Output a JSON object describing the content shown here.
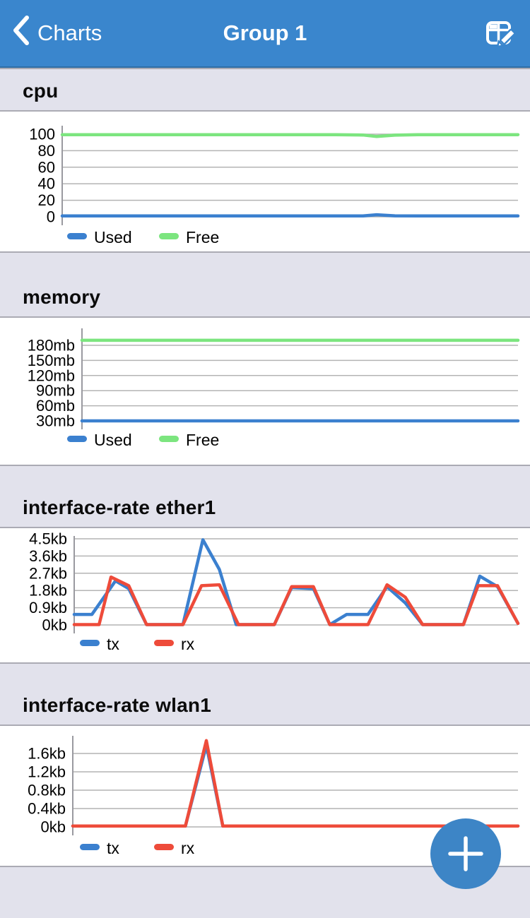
{
  "navbar": {
    "back_label": "Charts",
    "back_icon": "chevron-left-icon",
    "title": "Group 1",
    "edit_icon": "edit-grid-icon",
    "accent": "#3a86cd"
  },
  "fab": {
    "icon": "plus-icon",
    "color": "#3d85c6"
  },
  "colors": {
    "navbar_blue": "#3a86cd",
    "band_background": "#e2e2ec",
    "band_border": "#ababb4",
    "gridline": "#b4b4b4",
    "axis": "#9a9aa0",
    "series_blue": "#3b80cf",
    "series_green": "#7ce57f",
    "series_red": "#ee4b3a",
    "fab_blue": "#3d85c6"
  },
  "chart_data": [
    {
      "type": "line",
      "title": "cpu",
      "ylim": [
        0,
        100
      ],
      "grid": true,
      "legend_position": "bottom-left",
      "ticks": {
        "values": [
          0,
          20,
          40,
          60,
          80,
          100
        ],
        "labels": [
          "0",
          "20",
          "40",
          "60",
          "80",
          "100"
        ]
      },
      "series": [
        {
          "name": "Used",
          "color": "#3b80cf",
          "points": [
            [
              0,
              1
            ],
            [
              0.6,
              1
            ],
            [
              0.66,
              1
            ],
            [
              0.69,
              2.5
            ],
            [
              0.73,
              1.2
            ],
            [
              0.78,
              1
            ],
            [
              1,
              1
            ]
          ]
        },
        {
          "name": "Free",
          "color": "#7ce57f",
          "points": [
            [
              0,
              99.3
            ],
            [
              0.6,
              99.3
            ],
            [
              0.66,
              99
            ],
            [
              0.69,
              97.2
            ],
            [
              0.73,
              98.8
            ],
            [
              0.78,
              99.4
            ],
            [
              1,
              99.4
            ]
          ]
        }
      ]
    },
    {
      "type": "line",
      "title": "memory",
      "ylim": [
        30,
        190
      ],
      "grid": true,
      "legend_position": "bottom-left",
      "ticks": {
        "values": [
          30,
          60,
          90,
          120,
          150,
          180
        ],
        "labels": [
          "30mb",
          "60mb",
          "90mb",
          "120mb",
          "150mb",
          "180mb"
        ]
      },
      "series": [
        {
          "name": "Used",
          "color": "#3b80cf",
          "points": [
            [
              0,
              30
            ],
            [
              1,
              30
            ]
          ]
        },
        {
          "name": "Free",
          "color": "#7ce57f",
          "points": [
            [
              0,
              190
            ],
            [
              1,
              190
            ]
          ]
        }
      ]
    },
    {
      "type": "line",
      "title": "interface-rate ether1",
      "ylim": [
        0,
        4.5
      ],
      "grid": true,
      "legend_position": "bottom-left",
      "ticks": {
        "values": [
          0,
          0.9,
          1.8,
          2.7,
          3.6,
          4.5
        ],
        "labels": [
          "0kb",
          "0.9kb",
          "1.8kb",
          "2.7kb",
          "3.6kb",
          "4.5kb"
        ]
      },
      "series": [
        {
          "name": "tx",
          "color": "#3b80cf",
          "points": [
            [
              0,
              0.55
            ],
            [
              0.04,
              0.55
            ],
            [
              0.093,
              2.3
            ],
            [
              0.123,
              1.9
            ],
            [
              0.163,
              0.02
            ],
            [
              0.245,
              0.02
            ],
            [
              0.29,
              4.45
            ],
            [
              0.327,
              2.9
            ],
            [
              0.365,
              0.02
            ],
            [
              0.451,
              0.02
            ],
            [
              0.49,
              1.95
            ],
            [
              0.539,
              1.9
            ],
            [
              0.576,
              0.02
            ],
            [
              0.614,
              0.55
            ],
            [
              0.662,
              0.55
            ],
            [
              0.705,
              2.0
            ],
            [
              0.746,
              1.15
            ],
            [
              0.785,
              0.02
            ],
            [
              0.877,
              0.02
            ],
            [
              0.914,
              2.55
            ],
            [
              0.954,
              2.0
            ],
            [
              1,
              0.08
            ]
          ]
        },
        {
          "name": "rx",
          "color": "#ee4b3a",
          "points": [
            [
              0,
              0.02
            ],
            [
              0.056,
              0.02
            ],
            [
              0.083,
              2.5
            ],
            [
              0.123,
              2.05
            ],
            [
              0.163,
              0.02
            ],
            [
              0.245,
              0.02
            ],
            [
              0.287,
              2.05
            ],
            [
              0.327,
              2.1
            ],
            [
              0.37,
              0.02
            ],
            [
              0.451,
              0.02
            ],
            [
              0.49,
              2.0
            ],
            [
              0.539,
              2.0
            ],
            [
              0.576,
              0.02
            ],
            [
              0.662,
              0.02
            ],
            [
              0.705,
              2.1
            ],
            [
              0.746,
              1.45
            ],
            [
              0.785,
              0.02
            ],
            [
              0.877,
              0.02
            ],
            [
              0.91,
              2.05
            ],
            [
              0.954,
              2.05
            ],
            [
              1,
              0.08
            ]
          ]
        }
      ]
    },
    {
      "type": "line",
      "title": "interface-rate wlan1",
      "ylim": [
        0,
        1.9
      ],
      "grid": true,
      "legend_position": "bottom-left",
      "ticks": {
        "values": [
          0,
          0.4,
          0.8,
          1.2,
          1.6
        ],
        "labels": [
          "0kb",
          "0.4kb",
          "0.8kb",
          "1.2kb",
          "1.6kb"
        ]
      },
      "series": [
        {
          "name": "tx",
          "color": "#3b80cf",
          "points": [
            [
              0,
              0.02
            ],
            [
              0.253,
              0.02
            ],
            [
              0.3,
              1.78
            ],
            [
              0.337,
              0.02
            ],
            [
              1,
              0.02
            ]
          ]
        },
        {
          "name": "rx",
          "color": "#ee4b3a",
          "points": [
            [
              0,
              0.02
            ],
            [
              0.253,
              0.02
            ],
            [
              0.3,
              1.88
            ],
            [
              0.337,
              0.02
            ],
            [
              1,
              0.02
            ]
          ]
        }
      ]
    }
  ]
}
